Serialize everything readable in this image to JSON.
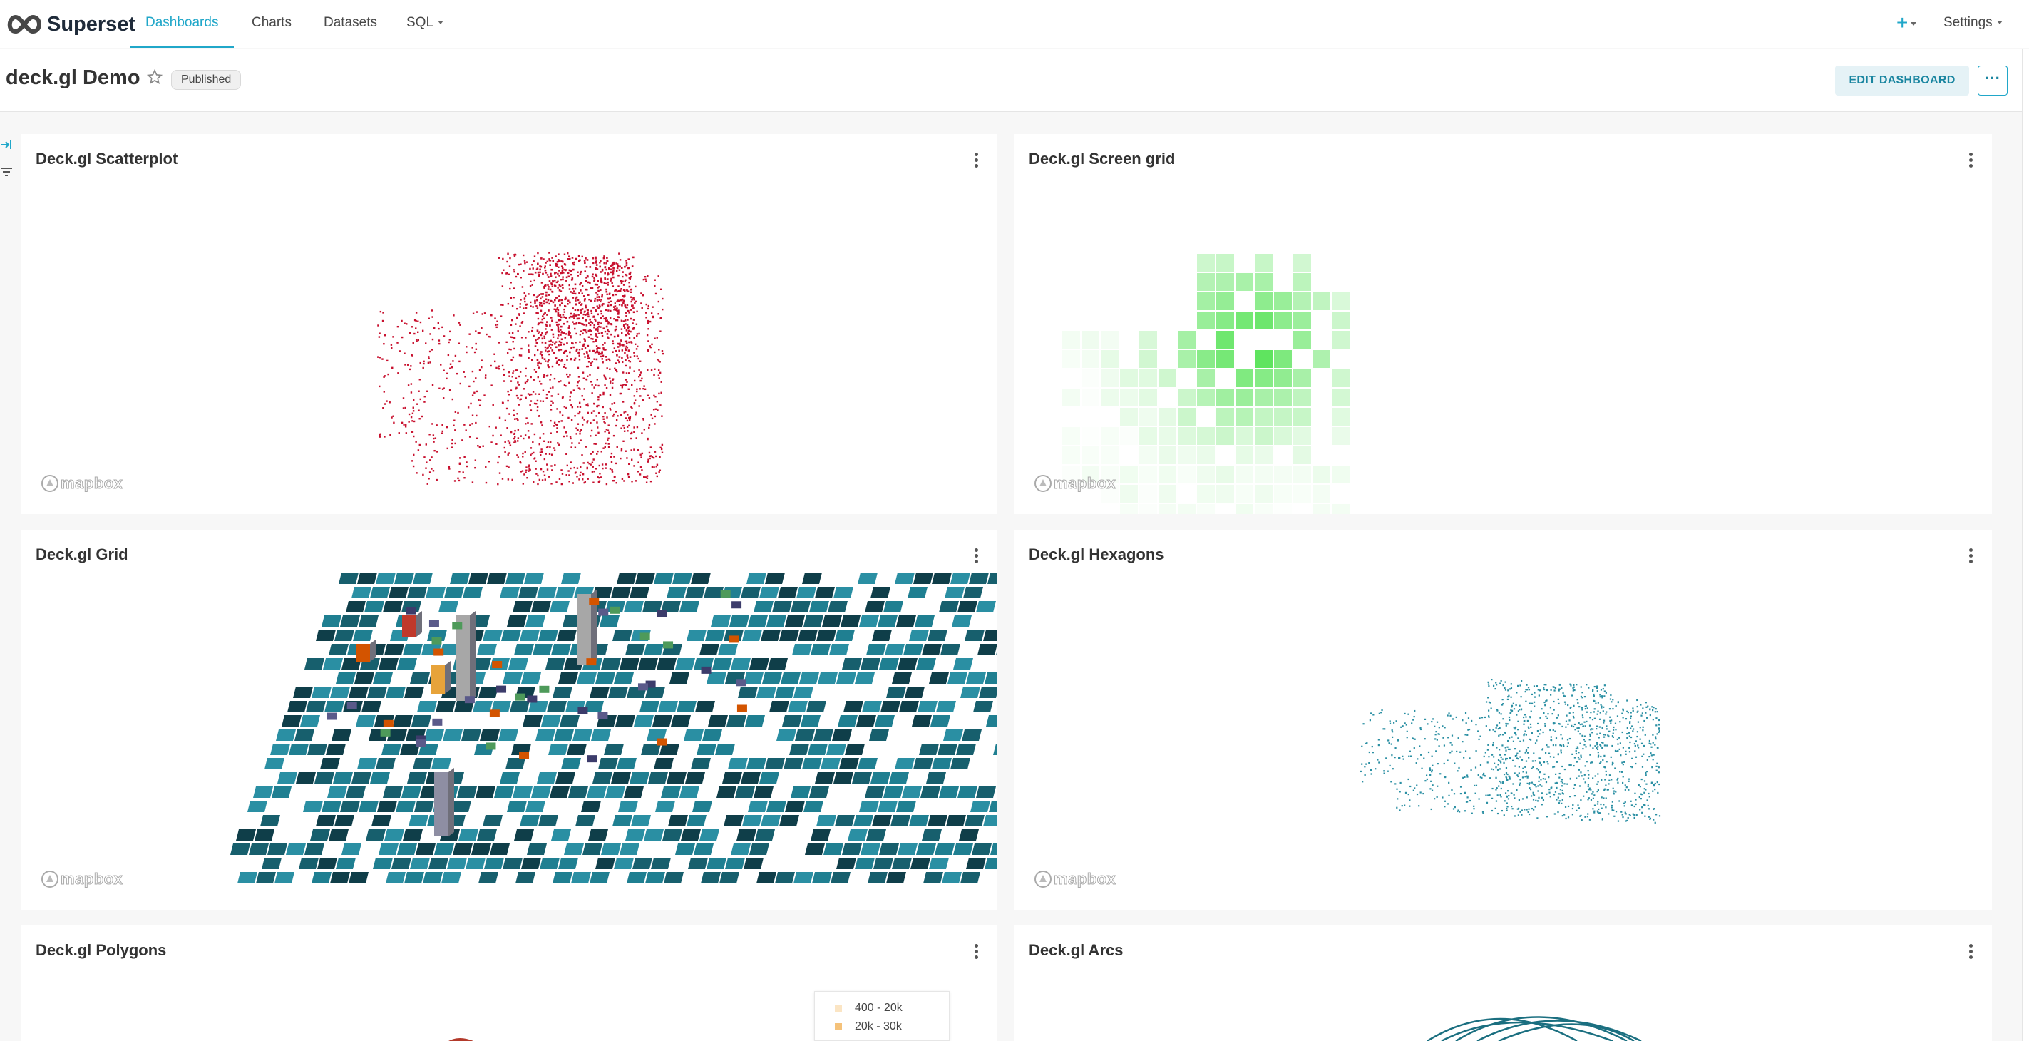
{
  "app": {
    "brand": "Superset"
  },
  "nav": {
    "items": [
      {
        "label": "Dashboards",
        "active": true
      },
      {
        "label": "Charts"
      },
      {
        "label": "Datasets"
      },
      {
        "label": "SQL"
      }
    ],
    "plus": "+",
    "settings": "Settings"
  },
  "dashboard": {
    "title": "deck.gl Demo",
    "status": "Published",
    "edit_label": "EDIT DASHBOARD",
    "more_label": "···"
  },
  "charts": [
    {
      "title": "Deck.gl Scatterplot",
      "type": "scatter",
      "color": "#c8102e"
    },
    {
      "title": "Deck.gl Screen grid",
      "type": "screengrid",
      "color": "#2fdc2f"
    },
    {
      "title": "Deck.gl Grid",
      "type": "grid3d",
      "color": "#2a8fa3"
    },
    {
      "title": "Deck.gl Hexagons",
      "type": "hexagon",
      "color": "#2a8fa3"
    },
    {
      "title": "Deck.gl Polygons",
      "type": "polygon"
    },
    {
      "title": "Deck.gl Arcs",
      "type": "arc",
      "color": "#1b6f80"
    }
  ],
  "map_attribution": "mapbox",
  "legend": {
    "entries": [
      {
        "label": "400 - 20k",
        "color": "#fbe5c4"
      },
      {
        "label": "20k - 30k",
        "color": "#f5c27a"
      }
    ]
  },
  "colors": {
    "accent": "#20a7c9",
    "edit_bg": "#e5f2f6"
  }
}
